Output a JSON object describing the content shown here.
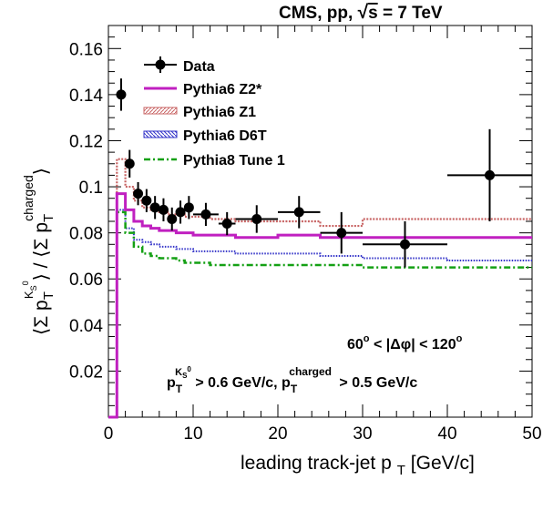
{
  "chart_data": {
    "type": "line",
    "title": "CMS, pp, √s = 7 TeV",
    "title_parts": {
      "prefix": "CMS, pp, ",
      "sqrt_sym": "√",
      "sqrt_arg": "s",
      "suffix": " = 7 TeV"
    },
    "xlabel": {
      "main": "leading track-jet p",
      "sub": "T",
      "unit": " [GeV/c]"
    },
    "ylabel": {
      "open": "⟨Σ p",
      "sub1": "T",
      "sup1": "K",
      "sup1sub": "S",
      "sup1sup": "0",
      "mid": "⟩ / ⟨Σ p",
      "sub2": "T",
      "sup2": "charged",
      "close": "⟩"
    },
    "xlim": [
      0,
      50
    ],
    "ylim": [
      0,
      0.17
    ],
    "xticks": [
      0,
      10,
      20,
      30,
      40,
      50
    ],
    "xtick_labels": [
      "0",
      "10",
      "20",
      "30",
      "40",
      "50"
    ],
    "yticks": [
      0.02,
      0.04,
      0.06,
      0.08,
      0.1,
      0.12,
      0.14,
      0.16
    ],
    "ytick_labels": [
      "0.02",
      "0.04",
      "0.06",
      "0.08",
      "0.1",
      "0.12",
      "0.14",
      "0.16"
    ],
    "annotations": {
      "dphi": {
        "text1": "60",
        "deg": "o",
        "text2": " < |Δφ| < 120",
        "deg2": "o"
      },
      "cuts": {
        "p1": "p",
        "sub1": "T",
        "sup1": "K",
        "sup1sub": "S",
        "sup1sup": "0",
        "mid": " > 0.6 GeV/c, p",
        "sub2": "T",
        "sup2": "charged",
        "end": " > 0.5 GeV/c"
      }
    },
    "legend_position": "top-left",
    "series": [
      {
        "name": "Data",
        "kind": "points",
        "color": "#000000",
        "points": [
          {
            "x": 1.5,
            "xlo": 1.0,
            "xhi": 2.0,
            "y": 0.14,
            "err": 0.007
          },
          {
            "x": 2.5,
            "xlo": 2.0,
            "xhi": 3.0,
            "y": 0.11,
            "err": 0.006
          },
          {
            "x": 3.5,
            "xlo": 3.0,
            "xhi": 4.0,
            "y": 0.097,
            "err": 0.005
          },
          {
            "x": 4.5,
            "xlo": 4.0,
            "xhi": 5.0,
            "y": 0.094,
            "err": 0.005
          },
          {
            "x": 5.5,
            "xlo": 5.0,
            "xhi": 6.0,
            "y": 0.091,
            "err": 0.005
          },
          {
            "x": 6.5,
            "xlo": 6.0,
            "xhi": 7.0,
            "y": 0.09,
            "err": 0.005
          },
          {
            "x": 7.5,
            "xlo": 7.0,
            "xhi": 8.0,
            "y": 0.086,
            "err": 0.005
          },
          {
            "x": 8.5,
            "xlo": 8.0,
            "xhi": 9.0,
            "y": 0.089,
            "err": 0.005
          },
          {
            "x": 9.5,
            "xlo": 9.0,
            "xhi": 10.0,
            "y": 0.091,
            "err": 0.005
          },
          {
            "x": 11.5,
            "xlo": 10.0,
            "xhi": 13.0,
            "y": 0.088,
            "err": 0.005
          },
          {
            "x": 14.0,
            "xlo": 13.0,
            "xhi": 15.0,
            "y": 0.084,
            "err": 0.005
          },
          {
            "x": 17.5,
            "xlo": 15.0,
            "xhi": 20.0,
            "y": 0.086,
            "err": 0.006
          },
          {
            "x": 22.5,
            "xlo": 20.0,
            "xhi": 25.0,
            "y": 0.089,
            "err": 0.007
          },
          {
            "x": 27.5,
            "xlo": 25.0,
            "xhi": 30.0,
            "y": 0.08,
            "err": 0.009
          },
          {
            "x": 35.0,
            "xlo": 30.0,
            "xhi": 40.0,
            "y": 0.075,
            "err": 0.01
          },
          {
            "x": 45.0,
            "xlo": 40.0,
            "xhi": 50.0,
            "y": 0.105,
            "err": 0.02
          }
        ]
      },
      {
        "name": "Pythia6 Z2*",
        "kind": "step",
        "color": "#c020c0",
        "style": "solid",
        "edges": [
          0,
          1,
          2,
          3,
          4,
          5,
          6,
          7,
          8,
          9,
          10,
          12,
          15,
          20,
          25,
          30,
          40,
          50
        ],
        "values": [
          0,
          0.097,
          0.09,
          0.085,
          0.083,
          0.082,
          0.081,
          0.081,
          0.08,
          0.08,
          0.079,
          0.079,
          0.078,
          0.079,
          0.078,
          0.078,
          0.078
        ]
      },
      {
        "name": "Pythia6 Z1",
        "kind": "step",
        "color": "#c86464",
        "style": "hatched",
        "edges": [
          0,
          1,
          2,
          3,
          4,
          5,
          6,
          7,
          8,
          9,
          10,
          12,
          15,
          20,
          25,
          30,
          40,
          50
        ],
        "values": [
          0,
          0.112,
          0.1,
          0.094,
          0.091,
          0.09,
          0.089,
          0.088,
          0.088,
          0.087,
          0.087,
          0.086,
          0.085,
          0.085,
          0.083,
          0.086,
          0.086
        ]
      },
      {
        "name": "Pythia6 D6T",
        "kind": "step",
        "color": "#3232c8",
        "style": "dotted",
        "edges": [
          0,
          1,
          2,
          3,
          4,
          5,
          6,
          7,
          8,
          9,
          10,
          12,
          15,
          20,
          25,
          30,
          40,
          50
        ],
        "values": [
          0,
          0.09,
          0.082,
          0.077,
          0.076,
          0.075,
          0.074,
          0.074,
          0.073,
          0.073,
          0.072,
          0.072,
          0.071,
          0.071,
          0.07,
          0.069,
          0.068
        ]
      },
      {
        "name": "Pythia8 Tune 1",
        "kind": "step",
        "color": "#14a014",
        "style": "dashdot",
        "edges": [
          0,
          1,
          2,
          3,
          4,
          5,
          6,
          7,
          8,
          9,
          10,
          12,
          15,
          20,
          25,
          30,
          40,
          50
        ],
        "values": [
          0,
          0.089,
          0.08,
          0.074,
          0.071,
          0.07,
          0.069,
          0.069,
          0.068,
          0.067,
          0.067,
          0.066,
          0.066,
          0.066,
          0.066,
          0.065,
          0.065
        ]
      }
    ]
  }
}
